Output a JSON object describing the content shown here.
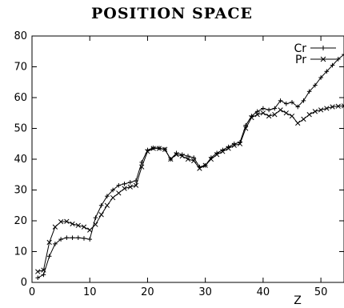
{
  "chart_data": {
    "type": "line",
    "title": "POSITION SPACE",
    "xlabel": "Z",
    "ylabel": "",
    "xlim": [
      0,
      54
    ],
    "ylim": [
      0,
      80
    ],
    "xticks": [
      0,
      10,
      20,
      30,
      40,
      50
    ],
    "yticks": [
      0,
      10,
      20,
      30,
      40,
      50,
      60,
      70,
      80
    ],
    "legend_position": "top-right",
    "grid": false,
    "series": [
      {
        "name": "Cr",
        "marker": "plus",
        "color": "#000000",
        "x": [
          1,
          2,
          3,
          4,
          5,
          6,
          7,
          8,
          9,
          10,
          11,
          12,
          13,
          14,
          15,
          16,
          17,
          18,
          19,
          20,
          21,
          22,
          23,
          24,
          25,
          26,
          27,
          28,
          29,
          30,
          31,
          32,
          33,
          34,
          35,
          36,
          37,
          38,
          39,
          40,
          41,
          42,
          43,
          44,
          45,
          46,
          47,
          48,
          49,
          50,
          51,
          52,
          53,
          54
        ],
        "y": [
          1.5,
          2.5,
          8.5,
          12.5,
          14,
          14.5,
          14.5,
          14.5,
          14.3,
          14,
          21,
          25,
          28,
          30,
          31.5,
          32,
          32.5,
          33,
          39,
          43,
          43.7,
          43.6,
          43.2,
          40,
          42,
          41.5,
          41,
          40.5,
          37.5,
          38,
          40.5,
          42,
          43,
          44,
          45,
          45.5,
          51,
          54,
          55.5,
          56.5,
          56,
          56.5,
          59,
          58,
          58.5,
          57,
          59,
          62,
          64,
          66.5,
          68.5,
          70.5,
          72.5,
          74
        ]
      },
      {
        "name": "Pr",
        "marker": "x",
        "color": "#000000",
        "x": [
          1,
          2,
          3,
          4,
          5,
          6,
          7,
          8,
          9,
          10,
          11,
          12,
          13,
          14,
          15,
          16,
          17,
          18,
          19,
          20,
          21,
          22,
          23,
          24,
          25,
          26,
          27,
          28,
          29,
          30,
          31,
          32,
          33,
          34,
          35,
          36,
          37,
          38,
          39,
          40,
          41,
          42,
          43,
          44,
          45,
          46,
          47,
          48,
          49,
          50,
          51,
          52,
          53,
          54
        ],
        "y": [
          3.5,
          4,
          13,
          18,
          19.7,
          19.8,
          19,
          18.5,
          18,
          17,
          18.8,
          22,
          25,
          27.5,
          29,
          30.5,
          31,
          31.5,
          37.5,
          42.5,
          43.5,
          43.5,
          43.2,
          40,
          41.5,
          41,
          40,
          39.5,
          37,
          38,
          40,
          41.5,
          42.5,
          43.5,
          44.5,
          45,
          50,
          53.5,
          54.5,
          55,
          54,
          54.5,
          56,
          55,
          54,
          51.7,
          53,
          54.5,
          55.5,
          56,
          56.5,
          57,
          57.2,
          57.3
        ]
      }
    ]
  }
}
